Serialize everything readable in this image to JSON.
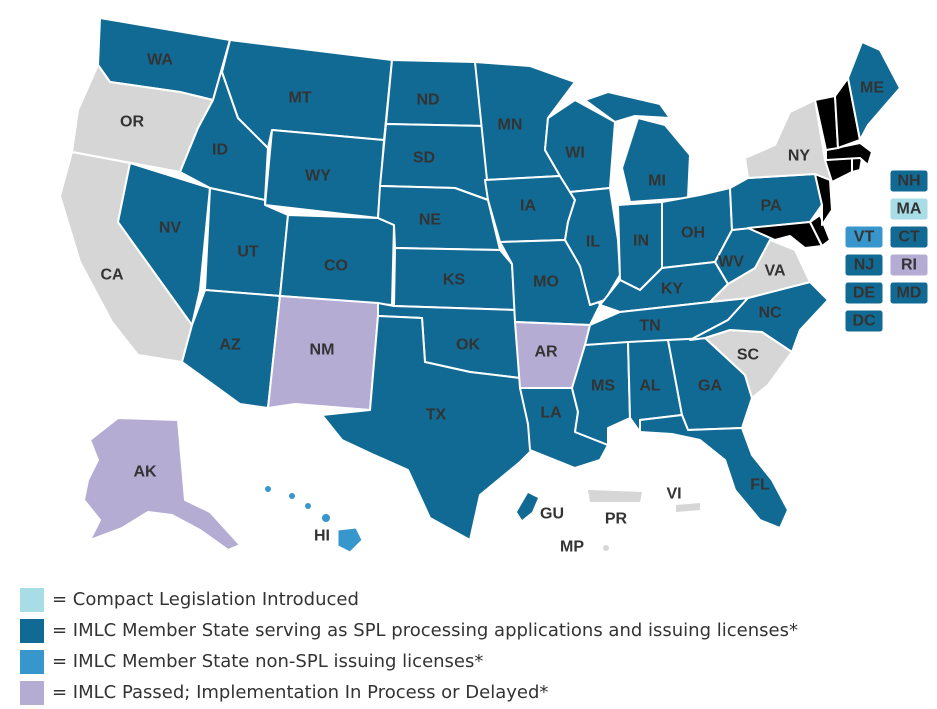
{
  "colors": {
    "introduced": "#a8dce6",
    "member_spl": "#116a94",
    "member_nonspl": "#3797cc",
    "passed": "#b4acd2",
    "none": "#d6d6d6"
  },
  "states": {
    "WA": {
      "label": "WA",
      "status": "member_spl"
    },
    "OR": {
      "label": "OR",
      "status": "none"
    },
    "CA": {
      "label": "CA",
      "status": "none"
    },
    "ID": {
      "label": "ID",
      "status": "member_spl"
    },
    "NV": {
      "label": "NV",
      "status": "member_spl"
    },
    "MT": {
      "label": "MT",
      "status": "member_spl"
    },
    "WY": {
      "label": "WY",
      "status": "member_spl"
    },
    "UT": {
      "label": "UT",
      "status": "member_spl"
    },
    "AZ": {
      "label": "AZ",
      "status": "member_spl"
    },
    "CO": {
      "label": "CO",
      "status": "member_spl"
    },
    "NM": {
      "label": "NM",
      "status": "passed"
    },
    "ND": {
      "label": "ND",
      "status": "member_spl"
    },
    "SD": {
      "label": "SD",
      "status": "member_spl"
    },
    "NE": {
      "label": "NE",
      "status": "member_spl"
    },
    "KS": {
      "label": "KS",
      "status": "member_spl"
    },
    "OK": {
      "label": "OK",
      "status": "member_spl"
    },
    "TX": {
      "label": "TX",
      "status": "member_spl"
    },
    "MN": {
      "label": "MN",
      "status": "member_spl"
    },
    "IA": {
      "label": "IA",
      "status": "member_spl"
    },
    "MO": {
      "label": "MO",
      "status": "member_spl"
    },
    "AR": {
      "label": "AR",
      "status": "passed"
    },
    "LA": {
      "label": "LA",
      "status": "member_spl"
    },
    "WI": {
      "label": "WI",
      "status": "member_spl"
    },
    "IL": {
      "label": "IL",
      "status": "member_spl"
    },
    "MI": {
      "label": "MI",
      "status": "member_spl"
    },
    "IN": {
      "label": "IN",
      "status": "member_spl"
    },
    "OH": {
      "label": "OH",
      "status": "member_spl"
    },
    "KY": {
      "label": "KY",
      "status": "member_spl"
    },
    "TN": {
      "label": "TN",
      "status": "member_spl"
    },
    "MS": {
      "label": "MS",
      "status": "member_spl"
    },
    "AL": {
      "label": "AL",
      "status": "member_spl"
    },
    "GA": {
      "label": "GA",
      "status": "member_spl"
    },
    "FL": {
      "label": "FL",
      "status": "member_spl"
    },
    "SC": {
      "label": "SC",
      "status": "none"
    },
    "NC": {
      "label": "NC",
      "status": "member_spl"
    },
    "VA": {
      "label": "VA",
      "status": "none"
    },
    "WV": {
      "label": "WV",
      "status": "member_spl"
    },
    "PA": {
      "label": "PA",
      "status": "member_spl"
    },
    "NY": {
      "label": "NY",
      "status": "none"
    },
    "ME": {
      "label": "ME",
      "status": "member_spl"
    },
    "AK": {
      "label": "AK",
      "status": "passed"
    },
    "HI": {
      "label": "HI",
      "status": "member_nonspl"
    },
    "GU": {
      "label": "GU",
      "status": "member_spl"
    },
    "MP": {
      "label": "MP",
      "status": "none"
    },
    "PR": {
      "label": "PR",
      "status": "none"
    },
    "VI": {
      "label": "VI",
      "status": "none"
    }
  },
  "small_states": [
    {
      "label": "NH",
      "status": "member_spl"
    },
    {
      "label": "MA",
      "status": "introduced"
    },
    {
      "label": "VT",
      "status": "member_nonspl"
    },
    {
      "label": "CT",
      "status": "member_spl"
    },
    {
      "label": "NJ",
      "status": "member_spl"
    },
    {
      "label": "RI",
      "status": "passed"
    },
    {
      "label": "DE",
      "status": "member_spl"
    },
    {
      "label": "MD",
      "status": "member_spl"
    },
    {
      "label": "DC",
      "status": "member_spl"
    }
  ],
  "legend": [
    {
      "status": "introduced",
      "text": "= Compact Legislation Introduced"
    },
    {
      "status": "member_spl",
      "text": "= IMLC Member State serving as SPL processing applications and issuing licenses*"
    },
    {
      "status": "member_nonspl",
      "text": "= IMLC Member State non-SPL issuing licenses*"
    },
    {
      "status": "passed",
      "text": "= IMLC Passed; Implementation In Process or Delayed*"
    }
  ]
}
